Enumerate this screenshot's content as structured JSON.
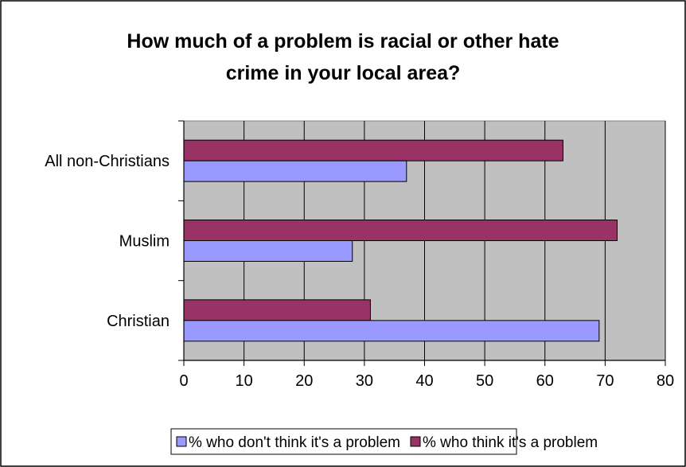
{
  "chart_data": {
    "type": "bar",
    "orientation": "horizontal",
    "title_lines": [
      "How much of a problem is racial or other hate",
      "crime in your local area?"
    ],
    "categories": [
      "All non-Christians",
      "Muslim",
      "Christian"
    ],
    "series": [
      {
        "name": "% who think it's a problem",
        "values": [
          63,
          72,
          31
        ],
        "color": "#993366"
      },
      {
        "name": "% who don't think it's a problem",
        "values": [
          37,
          28,
          69
        ],
        "color": "#9999ff"
      }
    ],
    "legend_order": [
      1,
      0
    ],
    "xlim": [
      0,
      80
    ],
    "xticks": [
      0,
      10,
      20,
      30,
      40,
      50,
      60,
      70,
      80
    ],
    "grid": true,
    "plot_background": "#c0c0c0",
    "legend_position": "bottom"
  }
}
